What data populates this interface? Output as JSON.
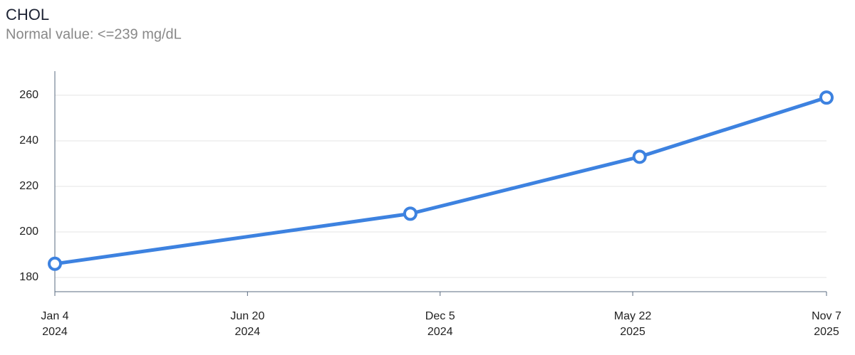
{
  "chart_data": {
    "type": "line",
    "title": "CHOL",
    "subtitle": "Normal value: <=239 mg/dL",
    "x": [
      "2024-01-04",
      "2024-11-09",
      "2025-05-28",
      "2025-11-07"
    ],
    "series": [
      {
        "name": "CHOL",
        "color": "#3d82e0",
        "values": [
          186,
          208,
          233,
          259
        ]
      }
    ],
    "xlim": [
      "2024-01-04",
      "2025-11-07"
    ],
    "xticks": [
      {
        "value": "2024-01-04",
        "label": [
          "Jan 4",
          "2024"
        ]
      },
      {
        "value": "2024-06-20",
        "label": [
          "Jun 20",
          "2024"
        ]
      },
      {
        "value": "2024-12-05",
        "label": [
          "Dec 5",
          "2024"
        ]
      },
      {
        "value": "2025-05-22",
        "label": [
          "May 22",
          "2025"
        ]
      },
      {
        "value": "2025-11-07",
        "label": [
          "Nov 7",
          "2025"
        ]
      }
    ],
    "ylim": [
      173.75,
      270.6
    ],
    "yticks": [
      180,
      200,
      220,
      240,
      260
    ],
    "grid": true
  }
}
